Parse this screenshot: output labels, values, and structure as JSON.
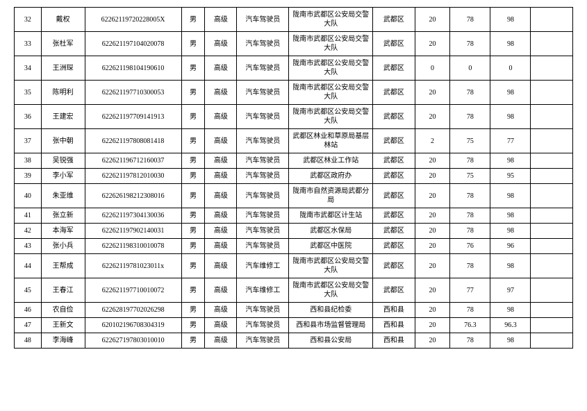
{
  "table": {
    "columns": [
      {
        "key": "idx",
        "cls": "col-idx"
      },
      {
        "key": "name",
        "cls": "col-name"
      },
      {
        "key": "id",
        "cls": "col-id"
      },
      {
        "key": "gender",
        "cls": "col-gender"
      },
      {
        "key": "level",
        "cls": "col-level"
      },
      {
        "key": "job",
        "cls": "col-job"
      },
      {
        "key": "unit",
        "cls": "col-unit"
      },
      {
        "key": "region",
        "cls": "col-region"
      },
      {
        "key": "n1",
        "cls": "col-n1"
      },
      {
        "key": "n2",
        "cls": "col-n2"
      },
      {
        "key": "n3",
        "cls": "col-n3"
      },
      {
        "key": "blank",
        "cls": "col-blank"
      }
    ],
    "rows": [
      {
        "idx": "32",
        "name": "戴权",
        "id": "62262119720228005X",
        "gender": "男",
        "level": "高级",
        "job": "汽车驾驶员",
        "unit": "陇南市武都区公安局交警大队",
        "region": "武都区",
        "n1": "20",
        "n2": "78",
        "n3": "98",
        "blank": ""
      },
      {
        "idx": "33",
        "name": "张杜军",
        "id": "622621197104020078",
        "gender": "男",
        "level": "高级",
        "job": "汽车驾驶员",
        "unit": "陇南市武都区公安局交警大队",
        "region": "武都区",
        "n1": "20",
        "n2": "78",
        "n3": "98",
        "blank": ""
      },
      {
        "idx": "34",
        "name": "王洲琛",
        "id": "622621198104190610",
        "gender": "男",
        "level": "高级",
        "job": "汽车驾驶员",
        "unit": "陇南市武都区公安局交警大队",
        "region": "武都区",
        "n1": "0",
        "n2": "0",
        "n3": "0",
        "blank": ""
      },
      {
        "idx": "35",
        "name": "陈明利",
        "id": "622621197710300053",
        "gender": "男",
        "level": "高级",
        "job": "汽车驾驶员",
        "unit": "陇南市武都区公安局交警大队",
        "region": "武都区",
        "n1": "20",
        "n2": "78",
        "n3": "98",
        "blank": ""
      },
      {
        "idx": "36",
        "name": "王建宏",
        "id": "622621197709141913",
        "gender": "男",
        "level": "高级",
        "job": "汽车驾驶员",
        "unit": "陇南市武都区公安局交警大队",
        "region": "武都区",
        "n1": "20",
        "n2": "78",
        "n3": "98",
        "blank": ""
      },
      {
        "idx": "37",
        "name": "张中朝",
        "id": "622621197808081418",
        "gender": "男",
        "level": "高级",
        "job": "汽车驾驶员",
        "unit": "武都区林业和草原局基层林站",
        "region": "武都区",
        "n1": "2",
        "n2": "75",
        "n3": "77",
        "blank": ""
      },
      {
        "idx": "38",
        "name": "吴锐强",
        "id": "622621196712160037",
        "gender": "男",
        "level": "高级",
        "job": "汽车驾驶员",
        "unit": "武都区林业工作站",
        "region": "武都区",
        "n1": "20",
        "n2": "78",
        "n3": "98",
        "blank": ""
      },
      {
        "idx": "39",
        "name": "李小军",
        "id": "622621197812010030",
        "gender": "男",
        "level": "高级",
        "job": "汽车驾驶员",
        "unit": "武都区政府办",
        "region": "武都区",
        "n1": "20",
        "n2": "75",
        "n3": "95",
        "blank": ""
      },
      {
        "idx": "40",
        "name": "朱亚维",
        "id": "622626198212308016",
        "gender": "男",
        "level": "高级",
        "job": "汽车驾驶员",
        "unit": "陇南市自然资源局武都分局",
        "region": "武都区",
        "n1": "20",
        "n2": "78",
        "n3": "98",
        "blank": ""
      },
      {
        "idx": "41",
        "name": "张立新",
        "id": "622621197304130036",
        "gender": "男",
        "level": "高级",
        "job": "汽车驾驶员",
        "unit": "陇南市武都区计生站",
        "region": "武都区",
        "n1": "20",
        "n2": "78",
        "n3": "98",
        "blank": ""
      },
      {
        "idx": "42",
        "name": "本海军",
        "id": "622621197902140031",
        "gender": "男",
        "level": "高级",
        "job": "汽车驾驶员",
        "unit": "武都区水保局",
        "region": "武都区",
        "n1": "20",
        "n2": "78",
        "n3": "98",
        "blank": ""
      },
      {
        "idx": "43",
        "name": "张小兵",
        "id": "622621198310010078",
        "gender": "男",
        "level": "高级",
        "job": "汽车驾驶员",
        "unit": "武都区中医院",
        "region": "武都区",
        "n1": "20",
        "n2": "76",
        "n3": "96",
        "blank": ""
      },
      {
        "idx": "44",
        "name": "王帮成",
        "id": "62262119781023011x",
        "gender": "男",
        "level": "高级",
        "job": "汽车维修工",
        "unit": "陇南市武都区公安局交警大队",
        "region": "武都区",
        "n1": "20",
        "n2": "78",
        "n3": "98",
        "blank": ""
      },
      {
        "idx": "45",
        "name": "王春江",
        "id": "622621197710010072",
        "gender": "男",
        "level": "高级",
        "job": "汽车维修工",
        "unit": "陇南市武都区公安局交警大队",
        "region": "武都区",
        "n1": "20",
        "n2": "77",
        "n3": "97",
        "blank": ""
      },
      {
        "idx": "46",
        "name": "农自俭",
        "id": "622628197702026298",
        "gender": "男",
        "level": "高级",
        "job": "汽车驾驶员",
        "unit": "西和县纪检委",
        "region": "西和县",
        "n1": "20",
        "n2": "78",
        "n3": "98",
        "blank": ""
      },
      {
        "idx": "47",
        "name": "王新文",
        "id": "620102196708304319",
        "gender": "男",
        "level": "高级",
        "job": "汽车驾驶员",
        "unit": "西和县市场监督管理局",
        "region": "西和县",
        "n1": "20",
        "n2": "76.3",
        "n3": "96.3",
        "blank": ""
      },
      {
        "idx": "48",
        "name": "李海峰",
        "id": "622627197803010010",
        "gender": "男",
        "level": "高级",
        "job": "汽车驾驶员",
        "unit": "西和县公安局",
        "region": "西和县",
        "n1": "20",
        "n2": "78",
        "n3": "98",
        "blank": ""
      }
    ]
  }
}
